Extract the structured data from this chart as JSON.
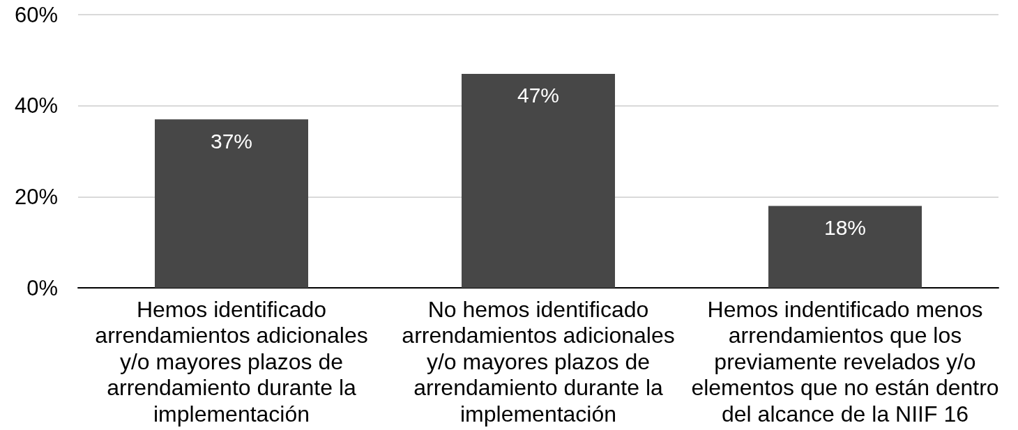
{
  "chart_data": {
    "type": "bar",
    "categories": [
      "Hemos identificado arrendamientos adicionales y/o mayores plazos de arrendamiento durante la implementación",
      "No hemos identificado arrendamientos adicionales y/o mayores plazos de arrendamiento durante la implementación",
      "Hemos indentificado menos arrendamientos que los previamente revelados y/o elementos que no están dentro del alcance de la NIIF 16"
    ],
    "values": [
      37,
      47,
      18
    ],
    "color": "#474747",
    "value_labels": [
      "37%",
      "47%",
      "18%"
    ],
    "ylim": [
      0,
      60
    ],
    "yticks": [
      {
        "value": 0,
        "label": "0%"
      },
      {
        "value": 20,
        "label": "20%"
      },
      {
        "value": 40,
        "label": "40%"
      },
      {
        "value": 60,
        "label": "60%"
      }
    ],
    "grid": "y"
  }
}
